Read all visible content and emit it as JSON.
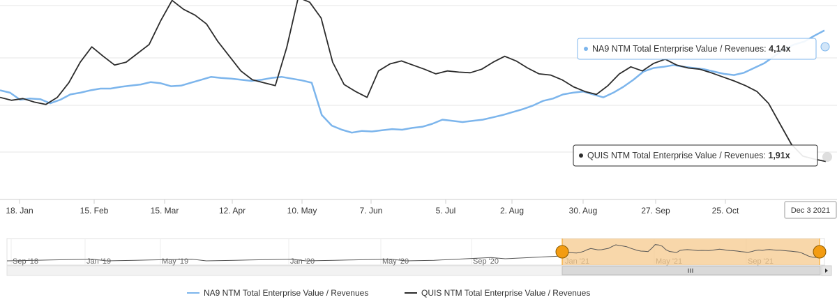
{
  "chart_data": {
    "type": "line",
    "x_ticks": [
      "18. Jan",
      "15. Feb",
      "15. Mar",
      "12. Apr",
      "10. May",
      "7. Jun",
      "5. Jul",
      "2. Aug",
      "30. Aug",
      "27. Sep",
      "25. Oct"
    ],
    "navigator_ticks": [
      "Sep '18",
      "Jan '19",
      "May '19",
      "Jan '20",
      "May '20",
      "Sep '20",
      "Jan '21",
      "May '21",
      "Sep '21"
    ],
    "grid": true,
    "legend_position": "bottom",
    "series": [
      {
        "name": "NA9 NTM Total Enterprise Value / Revenues",
        "color": "#7cb5ec",
        "values": [
          3.12,
          3.08,
          2.96,
          2.98,
          2.97,
          2.9,
          2.96,
          3.05,
          3.08,
          3.12,
          3.15,
          3.15,
          3.18,
          3.2,
          3.22,
          3.26,
          3.24,
          3.19,
          3.2,
          3.25,
          3.3,
          3.35,
          3.33,
          3.32,
          3.3,
          3.28,
          3.3,
          3.33,
          3.35,
          3.32,
          3.29,
          3.25,
          2.7,
          2.52,
          2.45,
          2.4,
          2.43,
          2.42,
          2.44,
          2.46,
          2.45,
          2.48,
          2.5,
          2.55,
          2.62,
          2.6,
          2.58,
          2.6,
          2.62,
          2.66,
          2.7,
          2.75,
          2.8,
          2.86,
          2.94,
          2.98,
          3.05,
          3.08,
          3.1,
          3.05,
          3.0,
          3.08,
          3.18,
          3.3,
          3.44,
          3.5,
          3.52,
          3.55,
          3.52,
          3.5,
          3.48,
          3.44,
          3.4,
          3.38,
          3.42,
          3.5,
          3.58,
          3.7,
          3.82,
          3.9,
          3.95,
          4.05,
          4.14
        ],
        "tooltip_value": "4,14x"
      },
      {
        "name": "QUIS NTM Total Enterprise Value / Revenues",
        "color": "#2b2b2b",
        "values": [
          3.0,
          2.95,
          2.98,
          2.92,
          2.88,
          3.0,
          3.25,
          3.6,
          3.86,
          3.7,
          3.55,
          3.6,
          3.75,
          3.9,
          4.3,
          4.65,
          4.5,
          4.4,
          4.25,
          3.95,
          3.7,
          3.45,
          3.3,
          3.25,
          3.2,
          3.85,
          4.7,
          4.62,
          4.35,
          3.6,
          3.22,
          3.1,
          3.0,
          3.45,
          3.57,
          3.62,
          3.55,
          3.48,
          3.4,
          3.45,
          3.43,
          3.42,
          3.48,
          3.6,
          3.7,
          3.62,
          3.5,
          3.4,
          3.38,
          3.3,
          3.18,
          3.1,
          3.05,
          3.2,
          3.4,
          3.52,
          3.45,
          3.58,
          3.65,
          3.55,
          3.5,
          3.48,
          3.42,
          3.35,
          3.28,
          3.2,
          3.1,
          2.9,
          2.55,
          2.2,
          2.0,
          1.95,
          1.91
        ],
        "tooltip_value": "1,91x"
      }
    ],
    "end_date_label": "Dec 3 2021"
  },
  "colors": {
    "na9": "#7cb5ec",
    "quis": "#2b2b2b",
    "navigator_mask": "#f6c98d",
    "navigator_handle": "#f39c12",
    "grid": "#e6e6e6"
  },
  "tooltips": {
    "na9_label": "NA9 NTM Total Enterprise Value / Revenues: ",
    "quis_label": "QUIS NTM Total Enterprise Value / Revenues: "
  },
  "icons": {
    "scrollbar_left": "chevron-left-icon",
    "scrollbar_right": "chevron-right-icon",
    "scrollbar_grip": "grip-icon"
  }
}
